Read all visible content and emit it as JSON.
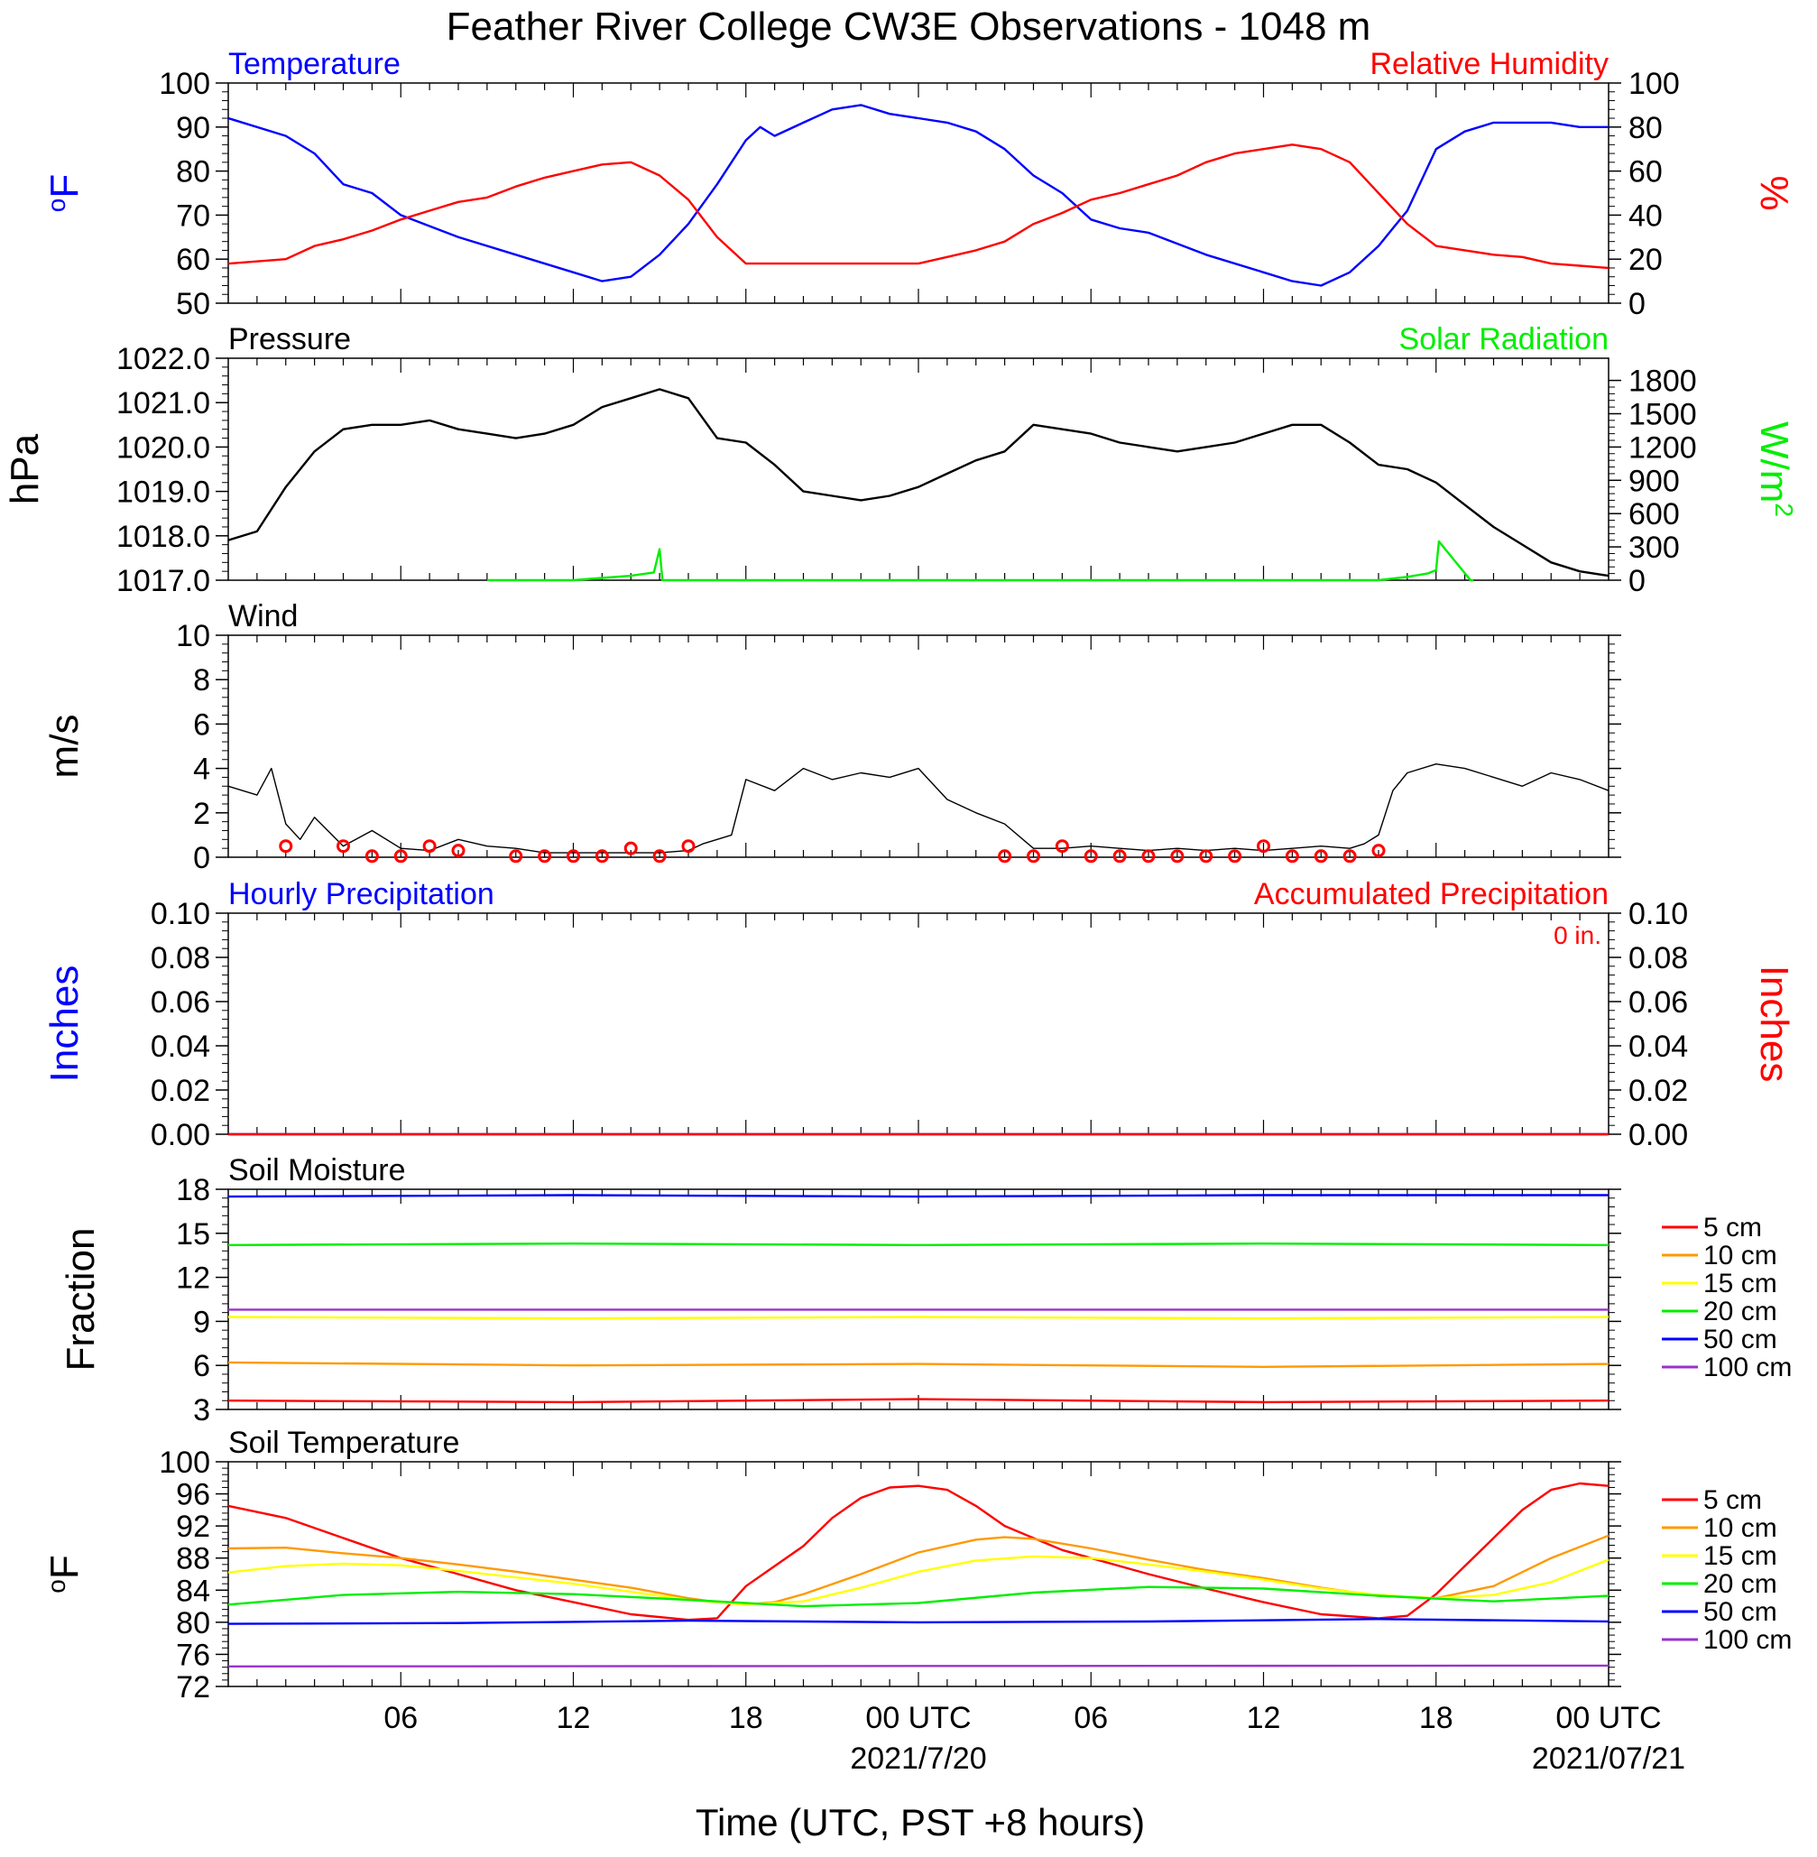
{
  "title": "Feather River College CW3E Observations - 1048 m",
  "x_axis": {
    "label": "Time (UTC, PST +8 hours)",
    "range_hours": [
      0,
      48
    ],
    "ticks": [
      {
        "h": 6,
        "label": "06",
        "date": ""
      },
      {
        "h": 12,
        "label": "12",
        "date": ""
      },
      {
        "h": 18,
        "label": "18",
        "date": ""
      },
      {
        "h": 24,
        "label": "00 UTC",
        "date": "2021/7/20"
      },
      {
        "h": 30,
        "label": "06",
        "date": ""
      },
      {
        "h": 36,
        "label": "12",
        "date": ""
      },
      {
        "h": 42,
        "label": "18",
        "date": ""
      },
      {
        "h": 48,
        "label": "00 UTC",
        "date": "2021/07/21"
      }
    ]
  },
  "colors": {
    "blue": "#0000ff",
    "red": "#ff0000",
    "green": "#00ee00",
    "black": "#000000",
    "orange": "#ff9900",
    "yellow": "#ffff00",
    "purple": "#9933cc"
  },
  "chart_data": [
    {
      "type": "line",
      "panel": "temperature-humidity",
      "title_left": "Temperature",
      "title_right": "Relative Humidity",
      "ylabel_left": "oF",
      "ylabel_right": "%",
      "ylim_left": [
        50,
        100
      ],
      "yticks_left": [
        50,
        60,
        70,
        80,
        90,
        100
      ],
      "ylim_right": [
        0,
        100
      ],
      "yticks_right": [
        0,
        20,
        40,
        60,
        80,
        100
      ],
      "series": [
        {
          "name": "Temperature",
          "axis": "left",
          "color": "#0000ff",
          "x": [
            0,
            2,
            3,
            4,
            5,
            6,
            8,
            10,
            12,
            13,
            14,
            15,
            16,
            17,
            18,
            18.5,
            19,
            20,
            21,
            22,
            23,
            24,
            25,
            26,
            27,
            28,
            29,
            30,
            31,
            32,
            34,
            36,
            37,
            38,
            39,
            40,
            40.5,
            41,
            42,
            43,
            44,
            45,
            46,
            47,
            48
          ],
          "y": [
            92,
            88,
            84,
            77,
            75,
            70,
            65,
            61,
            57,
            55,
            56,
            61,
            68,
            77,
            87,
            90,
            88,
            91,
            94,
            95,
            93,
            92,
            91,
            89,
            85,
            79,
            75,
            69,
            67,
            66,
            61,
            57,
            55,
            54,
            57,
            63,
            67,
            71,
            85,
            89,
            91,
            91,
            91,
            90,
            90
          ]
        },
        {
          "name": "Relative Humidity",
          "axis": "right",
          "color": "#ff0000",
          "x": [
            0,
            2,
            3,
            4,
            5,
            6,
            7,
            8,
            9,
            10,
            11,
            12,
            13,
            14,
            15,
            16,
            17,
            18,
            19,
            20,
            21,
            22,
            23,
            24,
            25,
            26,
            27,
            28,
            29,
            30,
            31,
            32,
            33,
            34,
            35,
            36,
            37,
            38,
            39,
            40,
            41,
            42,
            43,
            44,
            45,
            46,
            47,
            48
          ],
          "y": [
            18,
            20,
            26,
            29,
            33,
            38,
            42,
            46,
            48,
            53,
            57,
            60,
            63,
            64,
            58,
            47,
            30,
            18,
            18,
            18,
            18,
            18,
            18,
            18,
            21,
            24,
            28,
            36,
            41,
            47,
            50,
            54,
            58,
            64,
            68,
            70,
            72,
            70,
            64,
            50,
            36,
            26,
            24,
            22,
            21,
            18,
            17,
            16
          ]
        }
      ]
    },
    {
      "type": "line",
      "panel": "pressure-solar",
      "title_left": "Pressure",
      "title_right": "Solar Radiation",
      "ylabel_left": "hPa",
      "ylabel_right": "W/m2",
      "ylim_left": [
        1017,
        1022
      ],
      "yticks_left": [
        "1017.0",
        "1018.0",
        "1019.0",
        "1020.0",
        "1021.0",
        "1022.0"
      ],
      "ylim_right": [
        0,
        2000
      ],
      "yticks_right": [
        0,
        300,
        600,
        900,
        1200,
        1500,
        1800
      ],
      "series": [
        {
          "name": "Pressure",
          "axis": "left",
          "color": "#000000",
          "x": [
            0,
            1,
            2,
            3,
            4,
            5,
            6,
            7,
            8,
            9,
            10,
            11,
            12,
            13,
            14,
            15,
            16,
            17,
            18,
            19,
            20,
            21,
            22,
            23,
            24,
            25,
            26,
            27,
            28,
            29,
            30,
            31,
            32,
            33,
            34,
            35,
            36,
            37,
            38,
            39,
            40,
            41,
            42,
            43,
            44,
            45,
            46,
            47,
            48
          ],
          "y": [
            1017.9,
            1018.1,
            1019.1,
            1019.9,
            1020.4,
            1020.5,
            1020.5,
            1020.6,
            1020.4,
            1020.3,
            1020.2,
            1020.3,
            1020.5,
            1020.9,
            1021.1,
            1021.3,
            1021.1,
            1020.2,
            1020.1,
            1019.6,
            1019.0,
            1018.9,
            1018.8,
            1018.9,
            1019.1,
            1019.4,
            1019.7,
            1019.9,
            1020.5,
            1020.4,
            1020.3,
            1020.1,
            1020.0,
            1019.9,
            1020.0,
            1020.1,
            1020.3,
            1020.5,
            1020.5,
            1020.1,
            1019.6,
            1019.5,
            1019.2,
            1018.7,
            1018.2,
            1017.8,
            1017.4,
            1017.2,
            1017.1
          ]
        },
        {
          "name": "Solar Radiation",
          "axis": "right",
          "color": "#00ee00",
          "x": [
            9,
            12,
            13,
            14,
            14.8,
            15,
            15.1,
            16.6,
            16.8,
            17,
            38.2,
            40,
            41,
            41.7,
            42,
            42.1,
            43.2,
            43.3
          ],
          "y": [
            0,
            0,
            20,
            40,
            70,
            280,
            0,
            0,
            0,
            0,
            0,
            0,
            30,
            60,
            90,
            350,
            0,
            0
          ]
        }
      ]
    },
    {
      "type": "line",
      "panel": "wind",
      "title_left": "Wind",
      "ylabel_left": "m/s",
      "ylim_left": [
        0,
        10
      ],
      "yticks_left": [
        0,
        2,
        4,
        6,
        8,
        10
      ],
      "series": [
        {
          "name": "Wind",
          "axis": "left",
          "color": "#000000",
          "x": [
            0,
            1,
            1.5,
            2,
            2.5,
            3,
            4,
            5,
            6,
            7,
            8,
            9,
            10,
            11,
            12,
            13,
            14,
            15,
            16,
            16.5,
            17,
            17.5,
            18,
            19,
            20,
            21,
            22,
            23,
            24,
            25,
            26,
            27,
            28,
            29,
            30,
            31,
            32,
            33,
            34,
            35,
            36,
            37,
            38,
            39,
            39.5,
            40,
            40.5,
            41,
            42,
            43,
            44,
            45,
            46,
            47,
            48
          ],
          "y": [
            3.2,
            2.8,
            4.0,
            1.5,
            0.8,
            1.8,
            0.5,
            1.2,
            0.4,
            0.3,
            0.8,
            0.5,
            0.4,
            0.2,
            0.2,
            0.2,
            0.2,
            0.2,
            0.3,
            0.6,
            0.8,
            1.0,
            3.5,
            3.0,
            4.0,
            3.5,
            3.8,
            3.6,
            4.0,
            2.6,
            2.0,
            1.5,
            0.4,
            0.4,
            0.5,
            0.4,
            0.3,
            0.4,
            0.3,
            0.4,
            0.3,
            0.4,
            0.5,
            0.4,
            0.6,
            1.0,
            3.0,
            3.8,
            4.2,
            4.0,
            3.6,
            3.2,
            3.8,
            3.5,
            3.0
          ]
        }
      ],
      "calm_circles_hours": [
        2,
        4,
        5,
        6,
        7,
        8,
        10,
        11,
        12,
        13,
        14,
        15,
        16,
        27,
        28,
        29,
        30,
        31,
        32,
        33,
        34,
        35,
        36,
        37,
        38,
        39,
        40
      ],
      "calm_circles_values": [
        0.5,
        0.5,
        0.05,
        0.05,
        0.5,
        0.3,
        0.05,
        0.05,
        0.05,
        0.05,
        0.4,
        0.05,
        0.5,
        0.05,
        0.05,
        0.5,
        0.05,
        0.05,
        0.05,
        0.05,
        0.05,
        0.05,
        0.5,
        0.05,
        0.05,
        0.05,
        0.3
      ]
    },
    {
      "type": "line",
      "panel": "precipitation",
      "title_left": "Hourly Precipitation",
      "title_right": "Accumulated Precipitation",
      "annotation": "0 in.",
      "ylabel_left": "Inches",
      "ylabel_right": "Inches",
      "ylim_left": [
        0,
        0.1
      ],
      "yticks_left": [
        "0.00",
        "0.02",
        "0.04",
        "0.06",
        "0.08",
        "0.10"
      ],
      "ylim_right": [
        0,
        0.1
      ],
      "yticks_right": [
        "0.00",
        "0.02",
        "0.04",
        "0.06",
        "0.08",
        "0.10"
      ],
      "series": [
        {
          "name": "Hourly Precipitation",
          "axis": "left",
          "color": "#0000ff",
          "x": [
            0,
            48
          ],
          "y": [
            0,
            0
          ]
        },
        {
          "name": "Accumulated Precipitation",
          "axis": "right",
          "color": "#ff0000",
          "x": [
            0,
            48
          ],
          "y": [
            0,
            0
          ]
        }
      ]
    },
    {
      "type": "line",
      "panel": "soil-moisture",
      "title_left": "Soil Moisture",
      "ylabel_left": "Fraction",
      "ylim_left": [
        3,
        18
      ],
      "yticks_left": [
        3,
        6,
        9,
        12,
        15,
        18
      ],
      "legend": "right",
      "series": [
        {
          "name": "5 cm",
          "axis": "left",
          "color": "#ff0000",
          "x": [
            0,
            12,
            24,
            36,
            48
          ],
          "y": [
            3.6,
            3.5,
            3.7,
            3.5,
            3.6
          ]
        },
        {
          "name": "10 cm",
          "axis": "left",
          "color": "#ff9900",
          "x": [
            0,
            12,
            24,
            36,
            48
          ],
          "y": [
            6.2,
            6.0,
            6.1,
            5.9,
            6.1
          ]
        },
        {
          "name": "15 cm",
          "axis": "left",
          "color": "#ffff00",
          "x": [
            0,
            12,
            24,
            36,
            48
          ],
          "y": [
            9.3,
            9.2,
            9.3,
            9.2,
            9.3
          ]
        },
        {
          "name": "20 cm",
          "axis": "left",
          "color": "#00ee00",
          "x": [
            0,
            12,
            24,
            36,
            48
          ],
          "y": [
            14.2,
            14.3,
            14.2,
            14.3,
            14.2
          ]
        },
        {
          "name": "50 cm",
          "axis": "left",
          "color": "#0000ff",
          "x": [
            0,
            12,
            24,
            36,
            48
          ],
          "y": [
            17.5,
            17.6,
            17.5,
            17.6,
            17.6
          ]
        },
        {
          "name": "100 cm",
          "axis": "left",
          "color": "#9933cc",
          "x": [
            0,
            12,
            24,
            36,
            48
          ],
          "y": [
            9.8,
            9.8,
            9.8,
            9.8,
            9.8
          ]
        }
      ]
    },
    {
      "type": "line",
      "panel": "soil-temperature",
      "title_left": "Soil Temperature",
      "ylabel_left": "oF",
      "ylim_left": [
        72,
        100
      ],
      "yticks_left": [
        72,
        76,
        80,
        84,
        88,
        92,
        96,
        100
      ],
      "legend": "right",
      "series": [
        {
          "name": "5 cm",
          "axis": "left",
          "color": "#ff0000",
          "x": [
            0,
            2,
            4,
            6,
            8,
            10,
            12,
            14,
            16,
            17,
            18,
            19,
            20,
            21,
            22,
            23,
            24,
            25,
            26,
            27,
            28,
            29,
            30,
            32,
            34,
            36,
            38,
            40,
            41,
            42,
            43,
            44,
            45,
            46,
            47,
            48
          ],
          "y": [
            94.5,
            93,
            90.5,
            88,
            86,
            84,
            82.5,
            81,
            80.3,
            80.5,
            84.5,
            87,
            89.5,
            93,
            95.5,
            96.8,
            97,
            96.5,
            94.5,
            92,
            90.5,
            89,
            88,
            86,
            84.2,
            82.5,
            81,
            80.5,
            80.8,
            83.5,
            87,
            90.5,
            94,
            96.5,
            97.3,
            97
          ]
        },
        {
          "name": "10 cm",
          "axis": "left",
          "color": "#ff9900",
          "x": [
            0,
            2,
            4,
            6,
            8,
            10,
            12,
            14,
            16,
            17,
            18,
            19,
            20,
            22,
            24,
            26,
            27,
            28,
            30,
            32,
            34,
            36,
            38,
            40,
            42,
            44,
            46,
            48
          ],
          "y": [
            89.2,
            89.3,
            88.6,
            88,
            87.2,
            86.3,
            85.3,
            84.3,
            83,
            82.5,
            82.2,
            82.5,
            83.5,
            86,
            88.7,
            90.3,
            90.6,
            90.4,
            89.2,
            87.8,
            86.5,
            85.5,
            84.3,
            83.3,
            83,
            84.5,
            88,
            90.8
          ]
        },
        {
          "name": "15 cm",
          "axis": "left",
          "color": "#ffff00",
          "x": [
            0,
            2,
            4,
            6,
            8,
            10,
            12,
            14,
            16,
            18,
            20,
            22,
            24,
            26,
            28,
            30,
            32,
            34,
            36,
            38,
            40,
            42,
            44,
            46,
            48
          ],
          "y": [
            86.2,
            87,
            87.3,
            87.1,
            86.4,
            85.6,
            84.8,
            83.8,
            82.8,
            82.2,
            82.6,
            84.3,
            86.3,
            87.7,
            88.2,
            88,
            87.2,
            86.3,
            85.3,
            84.2,
            83.4,
            83,
            83.4,
            85,
            87.8
          ]
        },
        {
          "name": "20 cm",
          "axis": "left",
          "color": "#00ee00",
          "x": [
            0,
            4,
            8,
            12,
            16,
            20,
            24,
            28,
            32,
            36,
            40,
            44,
            48
          ],
          "y": [
            82.2,
            83.4,
            83.8,
            83.5,
            82.8,
            82,
            82.4,
            83.7,
            84.4,
            84.2,
            83.3,
            82.6,
            83.3
          ]
        },
        {
          "name": "50 cm",
          "axis": "left",
          "color": "#0000ff",
          "x": [
            0,
            8,
            16,
            24,
            32,
            40,
            48
          ],
          "y": [
            79.8,
            79.9,
            80.2,
            80,
            80.1,
            80.4,
            80.1
          ]
        },
        {
          "name": "100 cm",
          "axis": "left",
          "color": "#9933cc",
          "x": [
            0,
            48
          ],
          "y": [
            74.5,
            74.6
          ]
        }
      ]
    }
  ]
}
